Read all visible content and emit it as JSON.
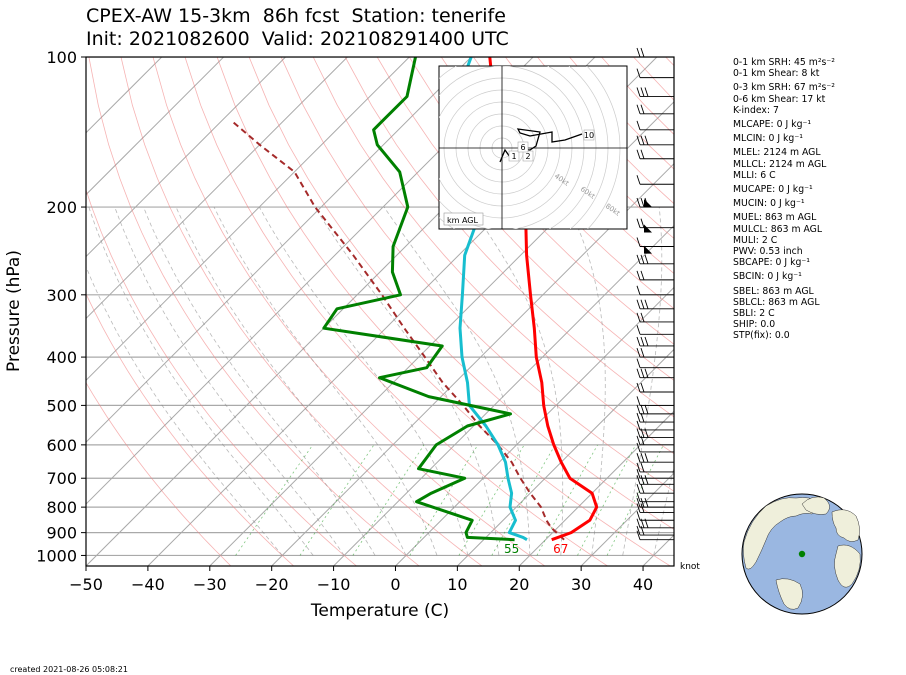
{
  "title_line1": "CPEX-AW 15-3km  86h fcst  Station: tenerife",
  "title_line2": "Init: 2021082600  Valid: 202108291400 UTC",
  "created": "created 2021-08-26 05:08:21",
  "barb_unit": "knot",
  "colors": {
    "temperature": "#ff0000",
    "dewpoint": "#008000",
    "wetbulb": "#17becf",
    "parcel": "#a52a2a"
  },
  "indices": [
    {
      "label": "0-1 km SRH: 45 m²s⁻²",
      "gap": false
    },
    {
      "label": "0-1 km Shear: 8 kt",
      "gap": false
    },
    {
      "label": "0-3 km SRH: 67 m²s⁻²",
      "gap": true
    },
    {
      "label": "0-6 km Shear: 17 kt",
      "gap": false
    },
    {
      "label": "K-index: 7",
      "gap": false
    },
    {
      "label": "MLCAPE: 0 J kg⁻¹",
      "gap": true
    },
    {
      "label": "MLCIN: 0 J kg⁻¹",
      "gap": true
    },
    {
      "label": "MLEL: 2124 m AGL",
      "gap": true
    },
    {
      "label": "MLLCL: 2124 m AGL",
      "gap": false
    },
    {
      "label": "MLLI: 6 C",
      "gap": false
    },
    {
      "label": "MUCAPE: 0 J kg⁻¹",
      "gap": true
    },
    {
      "label": "MUCIN: 0 J kg⁻¹",
      "gap": true
    },
    {
      "label": "MUEL: 863 m AGL",
      "gap": true
    },
    {
      "label": "MULCL: 863 m AGL",
      "gap": false
    },
    {
      "label": "MULI: 2 C",
      "gap": false
    },
    {
      "label": "PWV: 0.53 inch",
      "gap": false
    },
    {
      "label": "SBCAPE: 0 J kg⁻¹",
      "gap": false
    },
    {
      "label": "SBCIN: 0 J kg⁻¹",
      "gap": true
    },
    {
      "label": "SBEL: 863 m AGL",
      "gap": true
    },
    {
      "label": "SBLCL: 863 m AGL",
      "gap": false
    },
    {
      "label": "SBLI: 2 C",
      "gap": false
    },
    {
      "label": "SHIP: 0.0",
      "gap": false
    },
    {
      "label": "STP(fix): 0.0",
      "gap": false
    }
  ],
  "chart_data": {
    "type": "line",
    "subtype": "skew-T log-p",
    "xlabel": "Temperature (C)",
    "ylabel": "Pressure (hPa)",
    "xlim": [
      -50,
      45
    ],
    "ylim": [
      1050,
      100
    ],
    "yscale": "log",
    "xticks": [
      -50,
      -40,
      -30,
      -20,
      -10,
      0,
      10,
      20,
      30,
      40
    ],
    "yticks": [
      100,
      200,
      300,
      400,
      500,
      600,
      700,
      800,
      900,
      1000
    ],
    "surface_labels": {
      "dewpoint": "55",
      "temperature": "67"
    },
    "series": [
      {
        "key": "temperature",
        "points": [
          [
            21,
            930
          ],
          [
            23,
            900
          ],
          [
            24,
            850
          ],
          [
            23,
            800
          ],
          [
            20,
            750
          ],
          [
            14,
            700
          ],
          [
            10,
            650
          ],
          [
            6,
            600
          ],
          [
            2,
            550
          ],
          [
            -2,
            500
          ],
          [
            -6,
            450
          ],
          [
            -11,
            400
          ],
          [
            -16,
            350
          ],
          [
            -22,
            300
          ],
          [
            -29,
            250
          ],
          [
            -37,
            200
          ],
          [
            -44,
            170
          ],
          [
            -49,
            150
          ],
          [
            -53,
            140
          ],
          [
            -60,
            120
          ],
          [
            -67,
            100
          ]
        ]
      },
      {
        "key": "dewpoint",
        "points": [
          [
            15,
            930
          ],
          [
            7,
            920
          ],
          [
            6,
            900
          ],
          [
            5,
            850
          ],
          [
            -7,
            780
          ],
          [
            -6,
            750
          ],
          [
            -3,
            700
          ],
          [
            -12,
            670
          ],
          [
            -13,
            600
          ],
          [
            -11,
            550
          ],
          [
            -6,
            520
          ],
          [
            -22,
            480
          ],
          [
            -33,
            440
          ],
          [
            -27,
            420
          ],
          [
            -28,
            380
          ],
          [
            -50,
            350
          ],
          [
            -51,
            320
          ],
          [
            -43,
            300
          ],
          [
            -48,
            270
          ],
          [
            -52,
            240
          ],
          [
            -56,
            200
          ],
          [
            -63,
            170
          ],
          [
            -71,
            150
          ],
          [
            -74,
            140
          ],
          [
            -74,
            120
          ],
          [
            -79,
            100
          ]
        ]
      },
      {
        "key": "wetbulb",
        "points": [
          [
            17,
            930
          ],
          [
            16,
            920
          ],
          [
            13,
            900
          ],
          [
            12,
            850
          ],
          [
            9,
            800
          ],
          [
            7,
            750
          ],
          [
            4,
            700
          ],
          [
            1,
            650
          ],
          [
            -3,
            600
          ],
          [
            -8,
            550
          ],
          [
            -14,
            500
          ],
          [
            -18,
            450
          ],
          [
            -23,
            400
          ],
          [
            -28,
            350
          ],
          [
            -33,
            300
          ],
          [
            -39,
            250
          ],
          [
            -44,
            200
          ],
          [
            -51,
            170
          ],
          [
            -55,
            150
          ],
          [
            -60,
            140
          ],
          [
            -66,
            120
          ],
          [
            -70,
            100
          ]
        ]
      },
      {
        "key": "parcel",
        "points": [
          [
            23,
            930
          ],
          [
            19,
            880
          ],
          [
            17,
            850
          ],
          [
            14,
            800
          ],
          [
            10,
            750
          ],
          [
            6,
            700
          ],
          [
            2,
            650
          ],
          [
            -3,
            600
          ],
          [
            -9,
            550
          ],
          [
            -15,
            500
          ],
          [
            -22,
            450
          ],
          [
            -29,
            400
          ],
          [
            -37,
            350
          ],
          [
            -46,
            300
          ],
          [
            -57,
            250
          ],
          [
            -71,
            200
          ],
          [
            -80,
            170
          ],
          [
            -90,
            150
          ],
          [
            -98,
            135
          ]
        ]
      }
    ],
    "wind_barb_levels_hpa": [
      930,
      910,
      880,
      850,
      820,
      800,
      780,
      750,
      720,
      700,
      680,
      650,
      620,
      600,
      580,
      560,
      540,
      520,
      500,
      470,
      440,
      420,
      400,
      380,
      360,
      340,
      320,
      300,
      280,
      260,
      240,
      220,
      200,
      180,
      160,
      150,
      140,
      130,
      120,
      110,
      100
    ],
    "hodograph": {
      "ring_labels": [
        "40kt",
        "60kt",
        "80kt"
      ],
      "height_labels": [
        "1",
        "2",
        "6",
        "10"
      ],
      "legend": "km AGL"
    }
  }
}
